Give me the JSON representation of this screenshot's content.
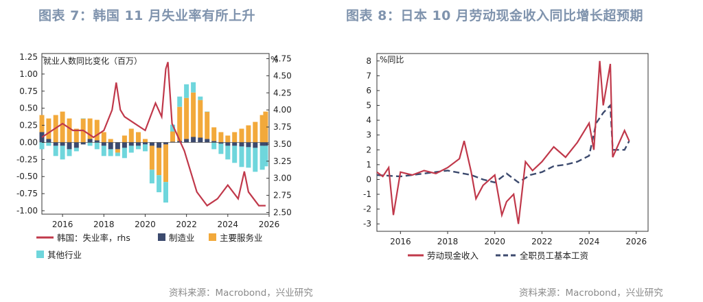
{
  "left_panel": {
    "title": "图表 7：韩国 11 月失业率有所上升",
    "source": "资料来源：Macrobond，兴业研究"
  },
  "right_panel": {
    "title": "图表 8：日本 10 月劳动现金收入同比增长超预期",
    "source": "资料来源：Macrobond，兴业研究"
  },
  "colors": {
    "red": "#c0384a",
    "navy": "#3c4a6e",
    "orange": "#f2a93b",
    "cyan": "#6fd6dc"
  },
  "chart_data": [
    {
      "type": "bar",
      "title": "图表 7：韩国 11 月失业率有所上升",
      "ylabel_left": "就业人数同比变化（百万）",
      "ylabel_right": "%",
      "ylim_left": [
        -1.05,
        1.3
      ],
      "ylim_right": [
        2.475,
        4.825
      ],
      "yticks_left": [
        "1.25",
        "1.00",
        "0.75",
        "0.50",
        "0.25",
        "0.00",
        "-0.25",
        "-0.50",
        "-0.75",
        "-1.00"
      ],
      "yticks_right": [
        "4.75",
        "4.50",
        "4.25",
        "4.00",
        "3.75",
        "3.50",
        "3.25",
        "3.00",
        "2.75",
        "2.50"
      ],
      "xticks": [
        "2016",
        "2018",
        "2020",
        "2022",
        "2024",
        "2026"
      ],
      "xlim": [
        2015.0,
        2026.0
      ],
      "legend": [
        "韩国：失业率，rhs",
        "制造业",
        "主要服务业",
        "其他行业"
      ],
      "bar_times": [
        2015.0,
        2015.33,
        2015.67,
        2016.0,
        2016.33,
        2016.67,
        2017.0,
        2017.33,
        2017.67,
        2018.0,
        2018.33,
        2018.67,
        2019.0,
        2019.33,
        2019.67,
        2020.0,
        2020.33,
        2020.67,
        2021.0,
        2021.33,
        2021.67,
        2022.0,
        2022.33,
        2022.67,
        2023.0,
        2023.33,
        2023.67,
        2024.0,
        2024.33,
        2024.67,
        2025.0,
        2025.33,
        2025.67,
        2025.83
      ],
      "series": [
        {
          "name": "制造业",
          "values": [
            0.15,
            0.05,
            -0.05,
            -0.05,
            -0.1,
            -0.08,
            -0.03,
            0.05,
            0.03,
            -0.05,
            -0.1,
            -0.1,
            -0.08,
            -0.05,
            -0.05,
            -0.03,
            -0.05,
            -0.08,
            -0.03,
            0.01,
            0.02,
            0.05,
            0.08,
            0.07,
            0.05,
            0.02,
            -0.02,
            -0.05,
            -0.05,
            -0.06,
            -0.07,
            -0.08,
            -0.05,
            -0.05
          ]
        },
        {
          "name": "主要服务业",
          "values": [
            0.25,
            0.3,
            0.4,
            0.45,
            0.35,
            0.2,
            0.35,
            0.3,
            0.3,
            0.15,
            0.05,
            -0.05,
            0.1,
            0.2,
            0.15,
            0.05,
            -0.35,
            -0.4,
            -0.55,
            0.15,
            0.5,
            0.6,
            0.65,
            0.55,
            0.4,
            0.2,
            0.15,
            0.1,
            0.15,
            0.2,
            0.25,
            0.3,
            0.4,
            0.45
          ]
        },
        {
          "name": "其他行业",
          "values": [
            -0.1,
            -0.05,
            -0.15,
            -0.2,
            -0.1,
            -0.05,
            0.0,
            -0.05,
            -0.1,
            -0.15,
            -0.1,
            -0.05,
            -0.15,
            -0.1,
            -0.05,
            -0.1,
            -0.2,
            -0.25,
            -0.3,
            0.1,
            0.15,
            0.2,
            0.15,
            0.05,
            0.0,
            -0.1,
            -0.15,
            -0.2,
            -0.25,
            -0.3,
            -0.3,
            -0.35,
            -0.35,
            -0.3
          ]
        }
      ],
      "line": {
        "name": "韩国：失业率，rhs",
        "x": [
          2015.0,
          2015.5,
          2016.0,
          2016.5,
          2017.0,
          2017.5,
          2018.0,
          2018.4,
          2018.6,
          2018.8,
          2019.0,
          2019.5,
          2020.0,
          2020.5,
          2020.8,
          2021.0,
          2021.1,
          2021.3,
          2021.6,
          2021.9,
          2022.0,
          2022.5,
          2023.0,
          2023.5,
          2024.0,
          2024.5,
          2024.8,
          2025.0,
          2025.5,
          2025.83
        ],
        "y": [
          3.6,
          3.7,
          3.8,
          3.7,
          3.7,
          3.6,
          3.7,
          4.0,
          4.4,
          4.0,
          3.9,
          3.8,
          3.7,
          4.1,
          3.9,
          4.6,
          4.7,
          3.8,
          3.6,
          3.4,
          3.3,
          2.8,
          2.6,
          2.7,
          2.9,
          2.7,
          3.1,
          2.8,
          2.6,
          2.6
        ]
      }
    },
    {
      "type": "line",
      "title": "图表 8：日本 10 月劳动现金收入同比增长超预期",
      "ylabel": "%同比",
      "ylim": [
        -3.5,
        8.5
      ],
      "yticks": [
        "8",
        "7",
        "6",
        "5",
        "4",
        "3",
        "2",
        "1",
        "0",
        "-1",
        "-2",
        "-3"
      ],
      "xticks": [
        "2016",
        "2018",
        "2020",
        "2022",
        "2024",
        "2026"
      ],
      "xlim": [
        2015.0,
        2026.5
      ],
      "legend": [
        "劳动现金收入",
        "全职员工基本工资"
      ],
      "series": [
        {
          "name": "劳动现金收入",
          "x": [
            2015.0,
            2015.25,
            2015.5,
            2015.7,
            2016.0,
            2016.5,
            2017.0,
            2017.5,
            2018.0,
            2018.5,
            2018.7,
            2019.0,
            2019.2,
            2019.5,
            2020.0,
            2020.3,
            2020.5,
            2020.8,
            2021.0,
            2021.3,
            2021.6,
            2022.0,
            2022.5,
            2023.0,
            2023.5,
            2024.0,
            2024.2,
            2024.45,
            2024.6,
            2024.9,
            2025.0,
            2025.5,
            2025.7
          ],
          "y": [
            0.5,
            0.2,
            0.8,
            -2.4,
            0.5,
            0.3,
            0.6,
            0.4,
            0.8,
            1.4,
            2.6,
            0.5,
            -1.3,
            -0.4,
            0.3,
            -2.4,
            -1.5,
            -1.0,
            -3.0,
            1.2,
            0.6,
            1.2,
            2.2,
            1.5,
            2.5,
            3.8,
            2.0,
            8.0,
            5.0,
            7.8,
            1.5,
            3.3,
            2.6
          ]
        },
        {
          "name": "全职员工基本工资",
          "x": [
            2015.0,
            2016.0,
            2017.0,
            2018.0,
            2019.0,
            2019.5,
            2020.0,
            2020.5,
            2021.0,
            2021.5,
            2022.0,
            2022.5,
            2023.0,
            2023.5,
            2024.0,
            2024.3,
            2024.6,
            2024.9,
            2025.0,
            2025.5,
            2025.7
          ],
          "y": [
            0.3,
            0.2,
            0.4,
            0.6,
            0.3,
            0.0,
            -0.2,
            0.4,
            -0.2,
            0.3,
            0.5,
            0.9,
            1.0,
            1.2,
            1.6,
            3.8,
            4.5,
            5.0,
            2.0,
            2.0,
            2.6
          ]
        }
      ]
    }
  ]
}
